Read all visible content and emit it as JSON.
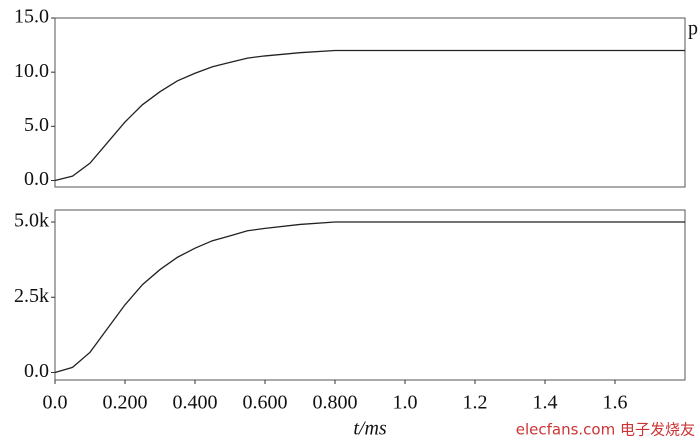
{
  "chart_data": [
    {
      "type": "line",
      "ylabel": "p",
      "x": [
        0,
        0.05,
        0.1,
        0.15,
        0.2,
        0.25,
        0.3,
        0.35,
        0.4,
        0.45,
        0.5,
        0.55,
        0.6,
        0.7,
        0.8,
        0.9,
        1.0,
        1.2,
        1.4,
        1.6,
        1.8
      ],
      "series": [
        {
          "color": "#222",
          "values": [
            0,
            0.4,
            1.6,
            3.5,
            5.4,
            7.0,
            8.2,
            9.2,
            9.9,
            10.5,
            10.9,
            11.3,
            11.5,
            11.8,
            12.0,
            12.0,
            12.0,
            12.0,
            12.0,
            12.0,
            12.0
          ]
        }
      ],
      "xlim": [
        0,
        1.8
      ],
      "ylim": [
        -0.6,
        15.0
      ],
      "yticks": [
        {
          "value": 0,
          "label": "0.0"
        },
        {
          "value": 5,
          "label": "5.0"
        },
        {
          "value": 10,
          "label": "10.0"
        },
        {
          "value": 15,
          "label": "15.0"
        }
      ]
    },
    {
      "type": "line",
      "xlabel": "t/ms",
      "watermark": "elecfans.com 电子发烧友",
      "x": [
        0,
        0.05,
        0.1,
        0.15,
        0.2,
        0.25,
        0.3,
        0.35,
        0.4,
        0.45,
        0.5,
        0.55,
        0.6,
        0.7,
        0.8,
        0.9,
        1.0,
        1.2,
        1.4,
        1.6,
        1.8
      ],
      "series": [
        {
          "color": "#222",
          "values": [
            0,
            170,
            670,
            1460,
            2250,
            2920,
            3420,
            3830,
            4130,
            4380,
            4540,
            4710,
            4790,
            4920,
            5000,
            5000,
            5000,
            5000,
            5000,
            5000,
            5000
          ]
        }
      ],
      "xlim": [
        0,
        1.8
      ],
      "ylim": [
        -250,
        5400
      ],
      "xticks": [
        {
          "value": 0,
          "label": "0.0"
        },
        {
          "value": 0.2,
          "label": "0.200"
        },
        {
          "value": 0.4,
          "label": "0.400"
        },
        {
          "value": 0.6,
          "label": "0.600"
        },
        {
          "value": 0.8,
          "label": "0.800"
        },
        {
          "value": 1,
          "label": "1.0"
        },
        1.2,
        1.4,
        1.6
      ],
      "yticks": [
        {
          "value": 0,
          "label": "0.0"
        },
        {
          "value": 2500,
          "label": "2.5k"
        },
        {
          "value": 5000,
          "label": "5.0k"
        }
      ]
    }
  ]
}
